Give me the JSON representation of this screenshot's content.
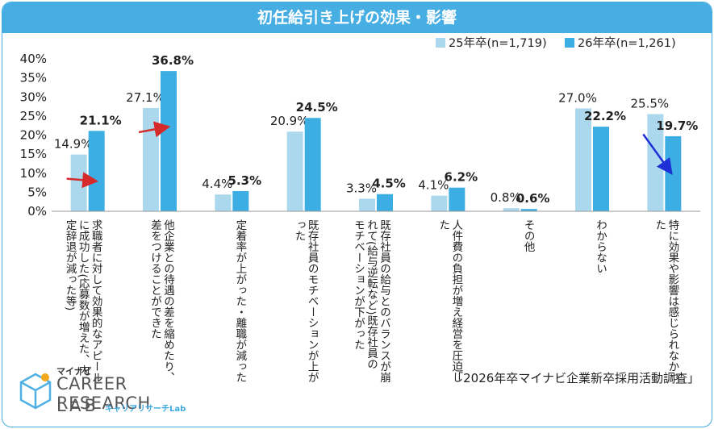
{
  "title": "初任給引き上げの効果・影響",
  "source": "「2026年卒マイナビ企業新卒採用活動調査」",
  "logo": {
    "brand": "マイナビ",
    "line1": "CAREER RESEARCH",
    "line2": "LAB",
    "sub": "キャリアリサーチLab"
  },
  "colors": {
    "series1": "#acd8ee",
    "series2": "#3caee3",
    "arrow_up": "#d42a2a",
    "arrow_down": "#1f2fd6",
    "frame": "#46aee2"
  },
  "chart_data": {
    "type": "bar",
    "ylim": [
      0,
      40
    ],
    "yticks": [
      "0%",
      "5%",
      "10%",
      "15%",
      "20%",
      "25%",
      "30%",
      "35%",
      "40%"
    ],
    "categories": [
      "求職者に対して効果的なアピールに成功した(応募数が増えた、内定辞退が減った等)",
      "他企業との待遇の差を縮めたり、差をつけることができた",
      "定着率が上がった・離職が減った",
      "既存社員のモチベーションが上がった",
      "既存社員の給与とのバランスが崩れて(給与逆転など)既存社員のモチベーションが下がった",
      "人件費の負担が増え経営を圧迫した",
      "その他",
      "わからない",
      "特に効果や影響は感じられなかった"
    ],
    "series": [
      {
        "name": "25年卒(n=1,719)",
        "values": [
          14.9,
          27.1,
          4.4,
          20.9,
          3.3,
          4.1,
          0.8,
          27.0,
          25.5
        ],
        "labels": [
          "14.9%",
          "27.1%",
          "4.4%",
          "20.9%",
          "3.3%",
          "4.1%",
          "0.8%",
          "27.0%",
          "25.5%"
        ]
      },
      {
        "name": "26年卒(n=1,261)",
        "values": [
          21.1,
          36.8,
          5.3,
          24.5,
          4.5,
          6.2,
          0.6,
          22.2,
          19.7
        ],
        "labels": [
          "21.1%",
          "36.8%",
          "5.3%",
          "24.5%",
          "4.5%",
          "6.2%",
          "0.6%",
          "22.2%",
          "19.7%"
        ]
      }
    ],
    "legend_position": "top-right",
    "arrows": [
      {
        "category": 0,
        "direction": "up"
      },
      {
        "category": 1,
        "direction": "up"
      },
      {
        "category": 8,
        "direction": "down"
      }
    ]
  }
}
